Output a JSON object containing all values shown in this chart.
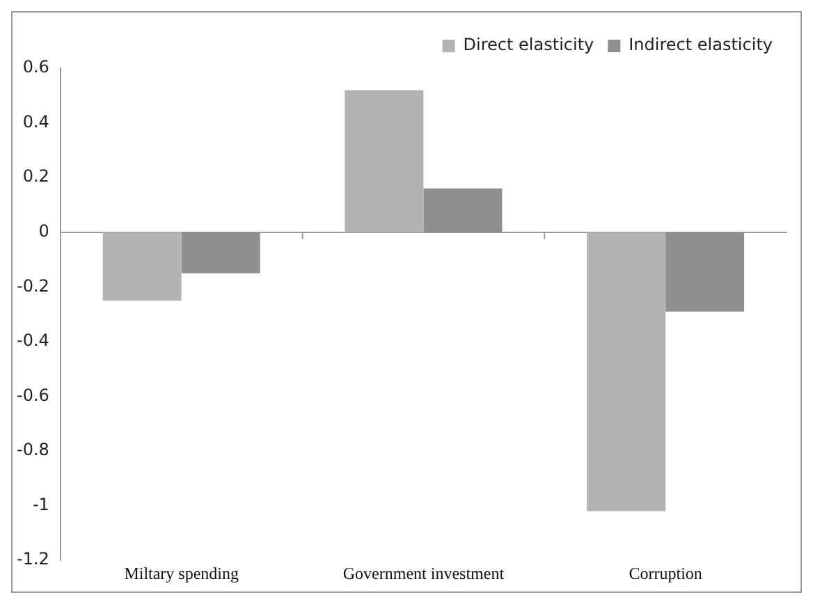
{
  "chart_data": {
    "type": "bar",
    "categories": [
      "Miltary spending",
      "Government investment",
      "Corruption"
    ],
    "series": [
      {
        "name": "Direct elasticity",
        "color": "#b3b3b3",
        "values": [
          -0.25,
          0.52,
          -1.02
        ]
      },
      {
        "name": "Indirect elasticity",
        "color": "#8f8f8f",
        "values": [
          -0.15,
          0.16,
          -0.29
        ]
      }
    ],
    "ylim": [
      -1.2,
      0.6
    ],
    "yticks": [
      -1.2,
      -1,
      -0.8,
      -0.6,
      -0.4,
      -0.2,
      0,
      0.2,
      0.4,
      0.6
    ],
    "legend": "top right"
  }
}
